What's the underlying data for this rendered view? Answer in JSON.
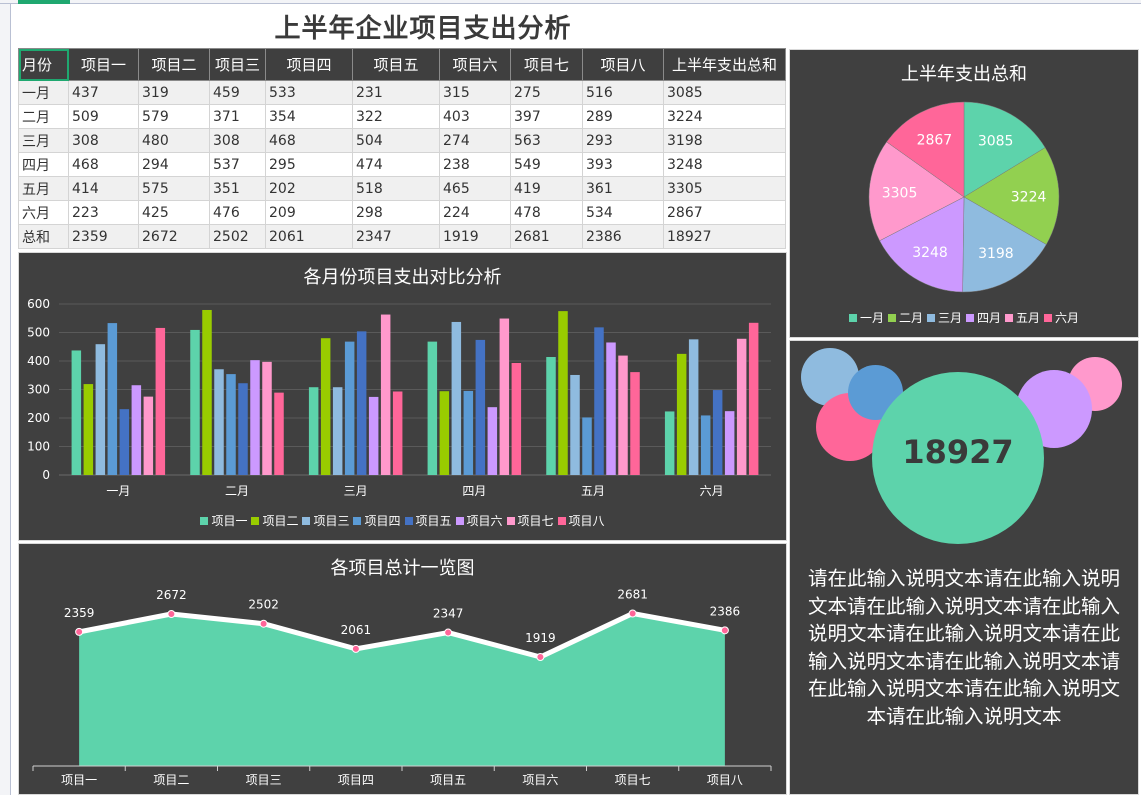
{
  "page": {
    "title": "上半年企业项目支出分析"
  },
  "table": {
    "headers": [
      "月份",
      "项目一",
      "项目二",
      "项目三",
      "项目四",
      "项目五",
      "项目六",
      "项目七",
      "项目八",
      "上半年支出总和"
    ],
    "rows": [
      [
        "一月",
        "437",
        "319",
        "459",
        "533",
        "231",
        "315",
        "275",
        "516",
        "3085"
      ],
      [
        "二月",
        "509",
        "579",
        "371",
        "354",
        "322",
        "403",
        "397",
        "289",
        "3224"
      ],
      [
        "三月",
        "308",
        "480",
        "308",
        "468",
        "504",
        "274",
        "563",
        "293",
        "3198"
      ],
      [
        "四月",
        "468",
        "294",
        "537",
        "295",
        "474",
        "238",
        "549",
        "393",
        "3248"
      ],
      [
        "五月",
        "414",
        "575",
        "351",
        "202",
        "518",
        "465",
        "419",
        "361",
        "3305"
      ],
      [
        "六月",
        "223",
        "425",
        "476",
        "209",
        "298",
        "224",
        "478",
        "534",
        "2867"
      ],
      [
        "总和",
        "2359",
        "2672",
        "2502",
        "2061",
        "2347",
        "1919",
        "2681",
        "2386",
        "18927"
      ]
    ]
  },
  "colors": {
    "panel_bg": "#404040",
    "series": [
      "#5dd3ab",
      "#99cc00",
      "#8fbbdf",
      "#5b9bd5",
      "#4472c4",
      "#cc99ff",
      "#ff99cc",
      "#ff6699"
    ],
    "pie": [
      "#5dd3ab",
      "#92d050",
      "#8fbbdf",
      "#cc99ff",
      "#ff99cc",
      "#ff6699"
    ],
    "area_fill": "#5dd3ab",
    "area_line": "#ffffff",
    "marker": "#ff6699"
  },
  "pie_panel": {
    "title": "上半年支出总和",
    "legend": [
      "一月",
      "二月",
      "三月",
      "四月",
      "五月",
      "六月"
    ]
  },
  "bar_panel": {
    "title": "各月份项目支出对比分析",
    "legend": [
      "项目一",
      "项目二",
      "项目三",
      "项目四",
      "项目五",
      "项目六",
      "项目七",
      "项目八"
    ],
    "y_ticks": [
      "0",
      "100",
      "200",
      "300",
      "400",
      "500",
      "600"
    ],
    "x_labels": [
      "一月",
      "二月",
      "三月",
      "四月",
      "五月",
      "六月"
    ]
  },
  "area_panel": {
    "title": "各项目总计一览图",
    "x_labels": [
      "项目一",
      "项目二",
      "项目三",
      "项目四",
      "项目五",
      "项目六",
      "项目七",
      "项目八"
    ],
    "value_labels": [
      "2359",
      "2672",
      "2502",
      "2061",
      "2347",
      "1919",
      "2681",
      "2386"
    ]
  },
  "summary_panel": {
    "total": "18927",
    "description": "请在此输入说明文本请在此输入说明文本请在此输入说明文本请在此输入说明文本请在此输入说明文本请在此输入说明文本请在此输入说明文本请在此输入说明文本请在此输入说明文本请在此输入说明文本"
  },
  "chart_data": [
    {
      "type": "pie",
      "title": "上半年支出总和",
      "categories": [
        "一月",
        "二月",
        "三月",
        "四月",
        "五月",
        "六月"
      ],
      "values": [
        3085,
        3224,
        3198,
        3248,
        3305,
        2867
      ],
      "legend_position": "bottom",
      "data_labels": true
    },
    {
      "type": "bar",
      "title": "各月份项目支出对比分析",
      "categories": [
        "一月",
        "二月",
        "三月",
        "四月",
        "五月",
        "六月"
      ],
      "series": [
        {
          "name": "项目一",
          "values": [
            437,
            509,
            308,
            468,
            414,
            223
          ]
        },
        {
          "name": "项目二",
          "values": [
            319,
            579,
            480,
            294,
            575,
            425
          ]
        },
        {
          "name": "项目三",
          "values": [
            459,
            371,
            308,
            537,
            351,
            476
          ]
        },
        {
          "name": "项目四",
          "values": [
            533,
            354,
            468,
            295,
            202,
            209
          ]
        },
        {
          "name": "项目五",
          "values": [
            231,
            322,
            504,
            474,
            518,
            298
          ]
        },
        {
          "name": "项目六",
          "values": [
            315,
            403,
            274,
            238,
            465,
            224
          ]
        },
        {
          "name": "项目七",
          "values": [
            275,
            397,
            563,
            549,
            419,
            478
          ]
        },
        {
          "name": "项目八",
          "values": [
            516,
            289,
            293,
            393,
            361,
            534
          ]
        }
      ],
      "xlabel": "",
      "ylabel": "",
      "ylim": [
        0,
        600
      ],
      "y_ticks": [
        0,
        100,
        200,
        300,
        400,
        500,
        600
      ],
      "grid": true,
      "legend_position": "bottom"
    },
    {
      "type": "area",
      "title": "各项目总计一览图",
      "categories": [
        "项目一",
        "项目二",
        "项目三",
        "项目四",
        "项目五",
        "项目六",
        "项目七",
        "项目八"
      ],
      "values": [
        2359,
        2672,
        2502,
        2061,
        2347,
        1919,
        2681,
        2386
      ],
      "data_labels": true,
      "grid": false,
      "y_axis_visible": false
    }
  ]
}
